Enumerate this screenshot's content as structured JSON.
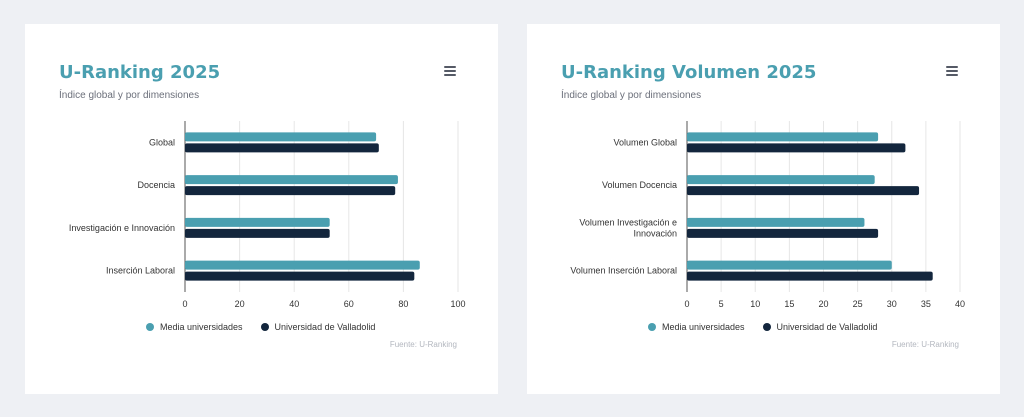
{
  "colors": {
    "media": "#4a9fb0",
    "uva": "#13263d"
  },
  "legend": {
    "media": "Media universidades",
    "uva": "Universidad de Valladolid"
  },
  "source": "Fuente: U-Ranking",
  "cards": [
    {
      "title": "U-Ranking 2025",
      "subtitle": "Índice global y por dimensiones"
    },
    {
      "title": "U-Ranking Volumen 2025",
      "subtitle": "Índice global y por dimensiones"
    }
  ],
  "chart_data": [
    {
      "type": "bar",
      "orientation": "horizontal",
      "title": "U-Ranking 2025",
      "subtitle": "Índice global y por dimensiones",
      "categories": [
        [
          "Global"
        ],
        [
          "Docencia"
        ],
        [
          "Investigación e Innovación"
        ],
        [
          "Inserción Laboral"
        ]
      ],
      "series": [
        {
          "name": "Media universidades",
          "values": [
            70,
            78,
            53,
            86
          ]
        },
        {
          "name": "Universidad de Valladolid",
          "values": [
            71,
            77,
            53,
            84
          ]
        }
      ],
      "xlim": [
        0,
        100
      ],
      "xticks": [
        0,
        20,
        40,
        60,
        80,
        100
      ],
      "grid": true,
      "legend": "bottom-center"
    },
    {
      "type": "bar",
      "orientation": "horizontal",
      "title": "U-Ranking Volumen 2025",
      "subtitle": "Índice global y por dimensiones",
      "categories": [
        [
          "Volumen Global"
        ],
        [
          "Volumen Docencia"
        ],
        [
          "Volumen Investigación e",
          "Innovación"
        ],
        [
          "Volumen Inserción Laboral"
        ]
      ],
      "series": [
        {
          "name": "Media universidades",
          "values": [
            28,
            27.5,
            26,
            30
          ]
        },
        {
          "name": "Universidad de Valladolid",
          "values": [
            32,
            34,
            28,
            36
          ]
        }
      ],
      "xlim": [
        0,
        40
      ],
      "xticks": [
        0,
        5,
        10,
        15,
        20,
        25,
        30,
        35,
        40
      ],
      "grid": true,
      "legend": "bottom-center"
    }
  ]
}
